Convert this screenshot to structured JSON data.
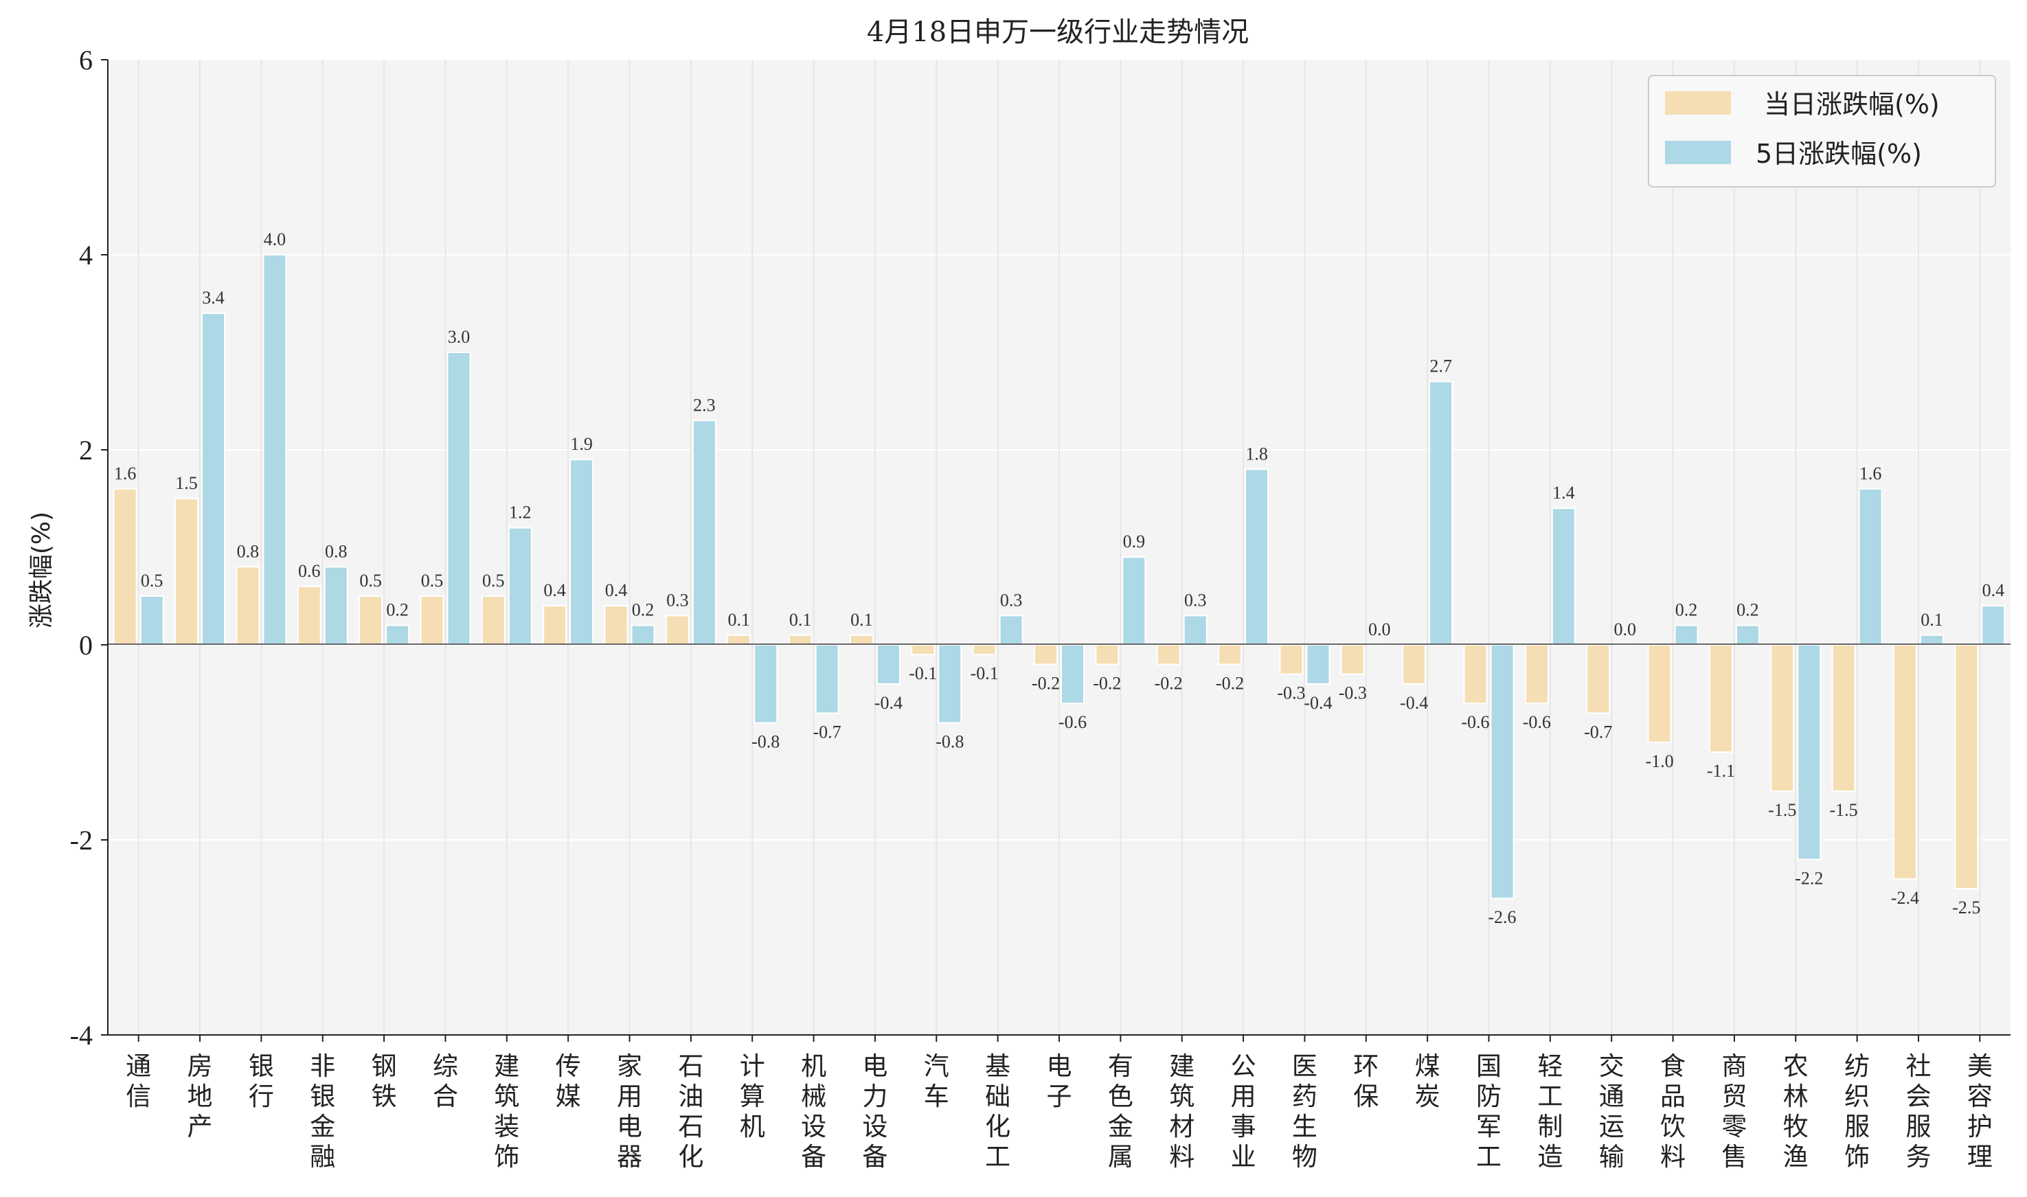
{
  "chart_data": {
    "type": "bar",
    "title": "4月18日申万一级行业走势情况",
    "ylabel": "涨跌幅(%)",
    "xlabel": "",
    "ylim": [
      -4,
      6
    ],
    "yticks": [
      -4,
      -2,
      0,
      2,
      4,
      6
    ],
    "legend_position": "top-right",
    "grid": true,
    "categories": [
      "通信",
      "房地产",
      "银行",
      "非银金融",
      "钢铁",
      "综合",
      "建筑装饰",
      "传媒",
      "家用电器",
      "石油石化",
      "计算机",
      "机械设备",
      "电力设备",
      "汽车",
      "基础化工",
      "电子",
      "有色金属",
      "建筑材料",
      "公用事业",
      "医药生物",
      "环保",
      "煤炭",
      "国防军工",
      "轻工制造",
      "交通运输",
      "食品饮料",
      "商贸零售",
      "农林牧渔",
      "纺织服饰",
      "社会服务",
      "美容护理"
    ],
    "series": [
      {
        "name": "当日涨跌幅(%)",
        "color": "#f5deb3",
        "values": [
          1.6,
          1.5,
          0.8,
          0.6,
          0.5,
          0.5,
          0.5,
          0.4,
          0.4,
          0.3,
          0.1,
          0.1,
          0.1,
          -0.1,
          -0.1,
          -0.2,
          -0.2,
          -0.2,
          -0.2,
          -0.3,
          -0.3,
          -0.4,
          -0.6,
          -0.6,
          -0.7,
          -1.0,
          -1.1,
          -1.5,
          -1.5,
          -2.4,
          -2.5
        ]
      },
      {
        "name": "5日涨跌幅(%)",
        "color": "#add8e6",
        "values": [
          0.5,
          3.4,
          4.0,
          0.8,
          0.2,
          3.0,
          1.2,
          1.9,
          0.2,
          2.3,
          -0.8,
          -0.7,
          -0.4,
          -0.8,
          0.3,
          -0.6,
          0.9,
          0.3,
          1.8,
          -0.4,
          0.0,
          2.7,
          -2.6,
          1.4,
          0.0,
          0.2,
          0.2,
          -2.2,
          1.6,
          0.1,
          0.4
        ]
      }
    ]
  }
}
